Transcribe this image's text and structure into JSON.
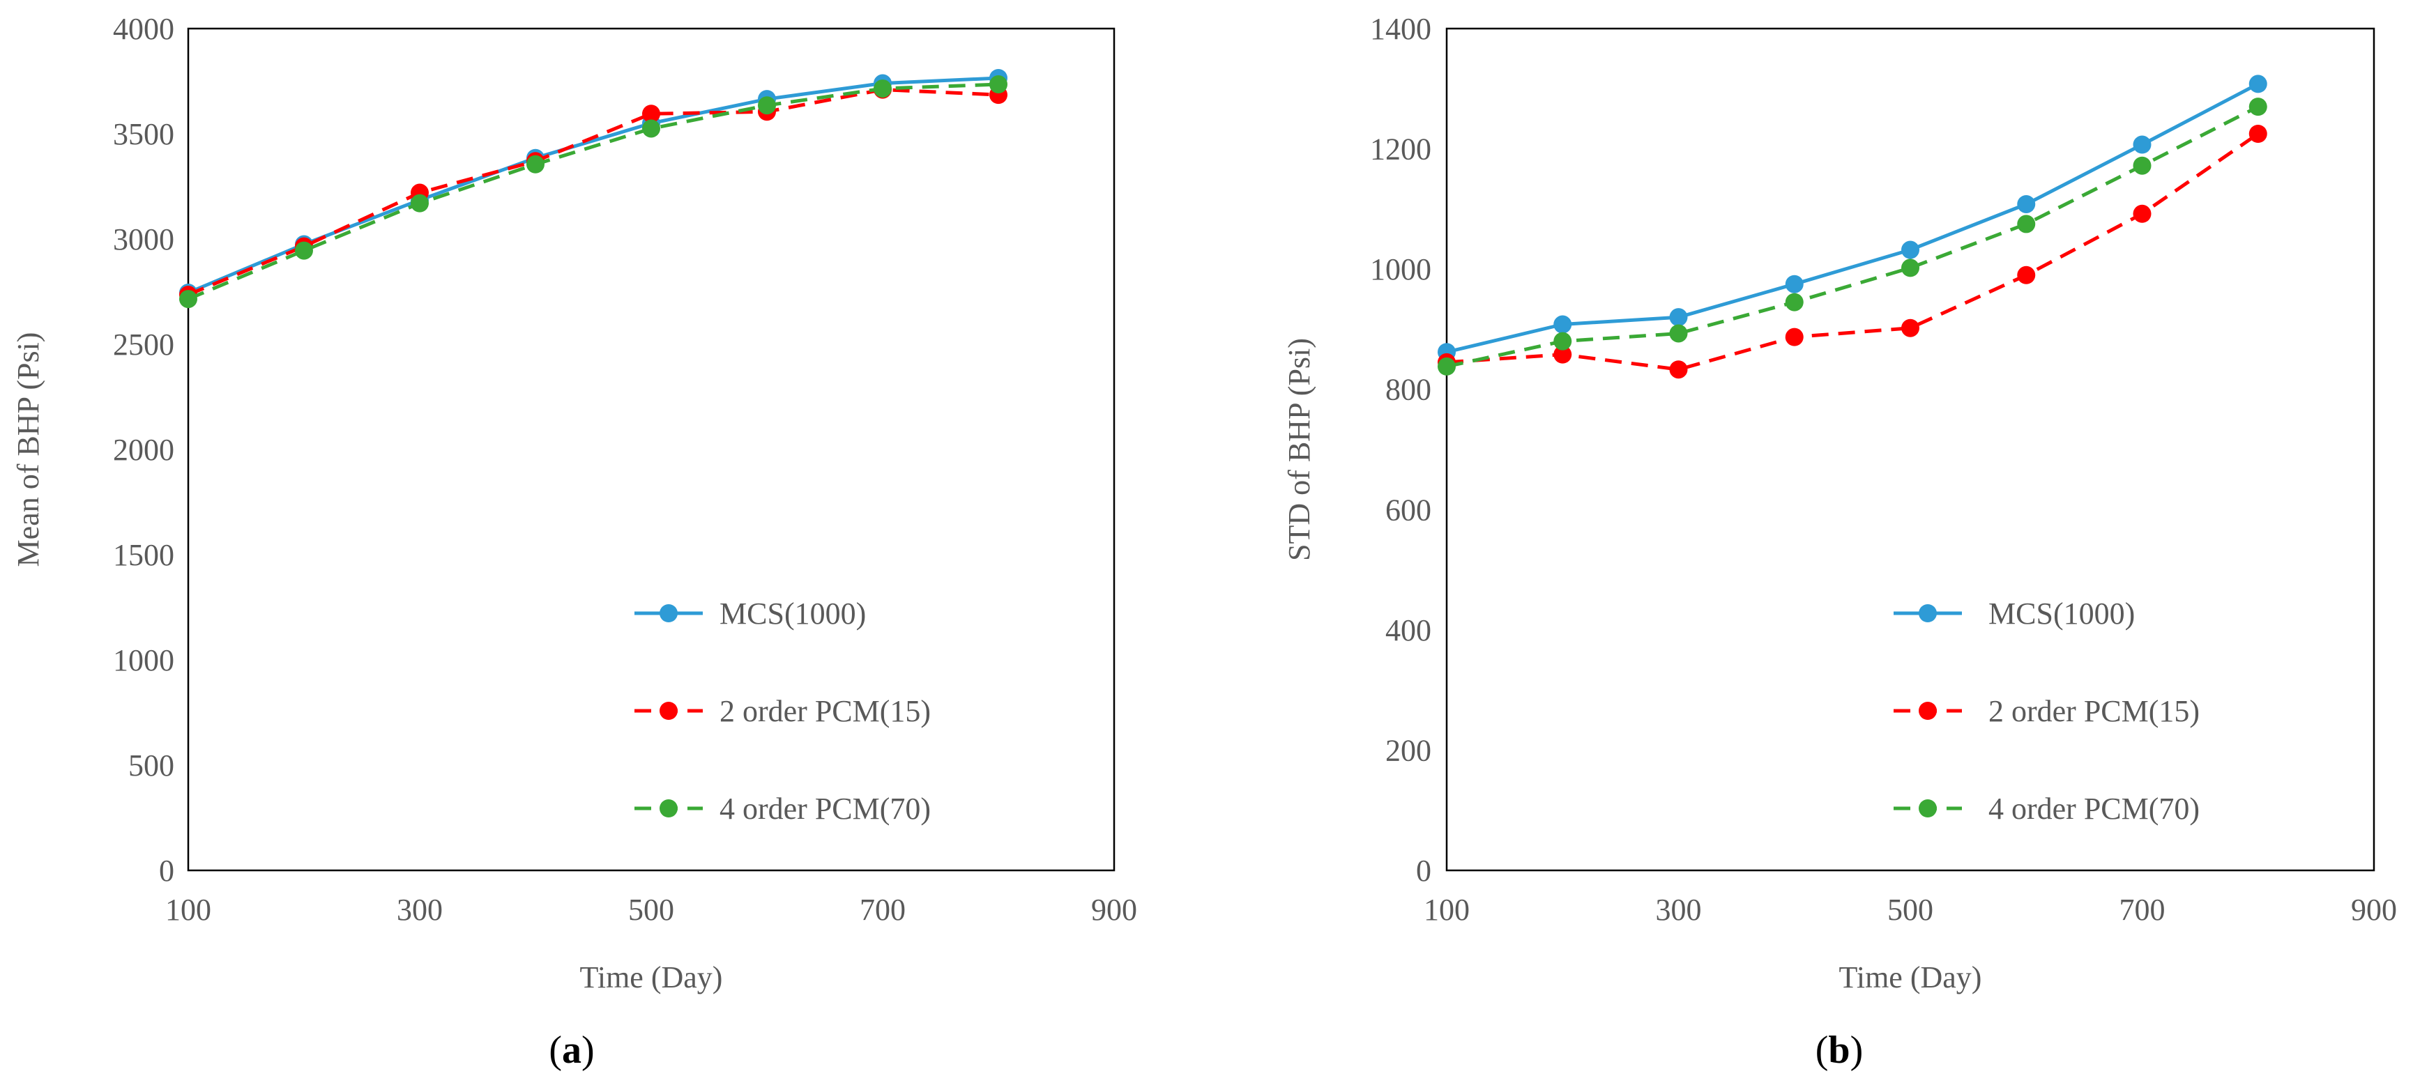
{
  "chart_data": [
    {
      "type": "line",
      "panel": "a",
      "caption": {
        "open": "(",
        "label": "a",
        "close": ")"
      },
      "title": "",
      "xlabel": "Time (Day)",
      "ylabel": "Mean of BHP (Psi)",
      "xlim": [
        100,
        900
      ],
      "ylim": [
        0,
        4000
      ],
      "xticks": [
        100,
        300,
        500,
        700,
        900
      ],
      "yticks": [
        0,
        500,
        1000,
        1500,
        2000,
        2500,
        3000,
        3500,
        4000
      ],
      "grid": false,
      "legend_position": "lower-right",
      "x": [
        100,
        200,
        300,
        400,
        500,
        600,
        700,
        800
      ],
      "series": [
        {
          "name": "MCS(1000)",
          "style": "solid",
          "color": "#2E9BD6",
          "values": [
            2745,
            2975,
            3185,
            3385,
            3550,
            3665,
            3740,
            3765
          ]
        },
        {
          "name": "2 order PCM(15)",
          "style": "dashed",
          "color": "#FF0000",
          "values": [
            2735,
            2965,
            3220,
            3370,
            3595,
            3605,
            3710,
            3685
          ]
        },
        {
          "name": "4 order PCM(70)",
          "style": "dashed",
          "color": "#3AA935",
          "values": [
            2715,
            2945,
            3170,
            3355,
            3525,
            3635,
            3715,
            3735
          ]
        }
      ]
    },
    {
      "type": "line",
      "panel": "b",
      "caption": {
        "open": "(",
        "label": "b",
        "close": ")"
      },
      "title": "",
      "xlabel": "Time (Day)",
      "ylabel": "STD of BHP (Psi)",
      "xlim": [
        100,
        900
      ],
      "ylim": [
        0,
        1400
      ],
      "xticks": [
        100,
        300,
        500,
        700,
        900
      ],
      "yticks": [
        0,
        200,
        400,
        600,
        800,
        1000,
        1200,
        1400
      ],
      "grid": false,
      "legend_position": "lower-right",
      "x": [
        100,
        200,
        300,
        400,
        500,
        600,
        700,
        800
      ],
      "series": [
        {
          "name": "MCS(1000)",
          "style": "solid",
          "color": "#2E9BD6",
          "values": [
            862,
            908,
            920,
            975,
            1032,
            1108,
            1207,
            1308
          ]
        },
        {
          "name": "2 order PCM(15)",
          "style": "dashed",
          "color": "#FF0000",
          "values": [
            845,
            858,
            833,
            887,
            902,
            990,
            1092,
            1225
          ]
        },
        {
          "name": "4 order PCM(70)",
          "style": "dashed",
          "color": "#3AA935",
          "values": [
            838,
            880,
            893,
            945,
            1002,
            1075,
            1172,
            1270
          ]
        }
      ]
    }
  ]
}
